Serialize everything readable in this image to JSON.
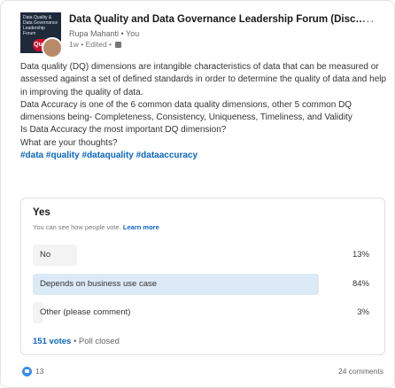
{
  "post": {
    "group_title": "Data Quality and Data Governance Leadership Forum (Discussi...",
    "author": "Rupa Mahanti • You",
    "meta": "1w • Edited •",
    "more_label": "...",
    "logo_text": "Data Quality & Data Governance Leadership Forum",
    "logo_badge": "Quality",
    "icons": {
      "more": "more-horizontal-icon",
      "visibility": "globe-icon",
      "reaction": "like-icon"
    }
  },
  "body": {
    "paragraph_1": "Data quality (DQ) dimensions are intangible characteristics of data that can be measured or assessed against a set of defined standards in order to determine the quality of data and help in improving the quality of data.",
    "paragraph_2": "Data Accuracy is one of the 6 common data quality dimensions, other 5 common DQ dimensions being- Completeness, Consistency, Uniqueness, Timeliness, and Validity",
    "paragraph_3": "Is Data Accuracy the most important DQ dimension?",
    "paragraph_4": "What are your thoughts?",
    "hashtags": [
      "#data",
      "#quality",
      "#dataquality",
      "#dataaccuracy"
    ]
  },
  "poll": {
    "question": "Yes",
    "visibility_text": "You can see how people vote.",
    "learn_more": "Learn more",
    "options": [
      {
        "label": "No",
        "percent_text": "13%",
        "percent": 13,
        "selected": false
      },
      {
        "label": "Depends on business use case",
        "percent_text": "84%",
        "percent": 84,
        "selected": true
      },
      {
        "label": "Other (please comment)",
        "percent_text": "3%",
        "percent": 3,
        "selected": false
      }
    ],
    "votes": "151 votes",
    "status": "• Poll closed"
  },
  "social": {
    "reactions": "13",
    "comments": "24 comments"
  },
  "colors": {
    "link": "#0a66c2",
    "selected_bar": "#dce9f7",
    "bar": "#f3f3f3"
  }
}
